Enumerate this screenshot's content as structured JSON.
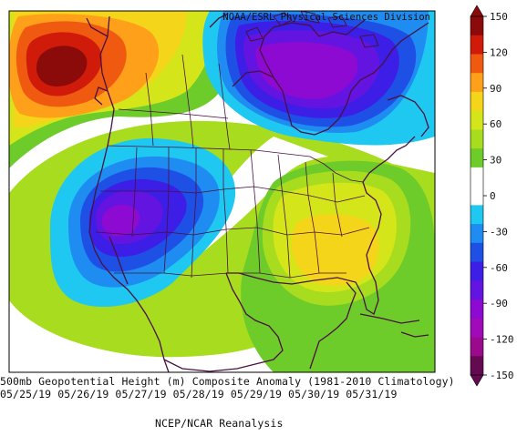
{
  "credit": "NOAA/ESRL Physical Sciences Division",
  "caption": {
    "line1": "500mb Geopotential Height (m) Composite Anomaly (1981-2010 Climatology)",
    "line2": "05/25/19 05/26/19 05/27/19 05/28/19 05/29/19 05/30/19 05/31/19",
    "line3": "NCEP/NCAR Reanalysis"
  },
  "colorbar": {
    "labels": [
      "150",
      "120",
      "90",
      "60",
      "30",
      "0",
      "-30",
      "-60",
      "-90",
      "-120",
      "-150"
    ],
    "colors": [
      "#8b0a0a",
      "#d01a0a",
      "#f05a10",
      "#ffa01a",
      "#f5d51a",
      "#d4e61a",
      "#a8dc1e",
      "#6ecc2a",
      "#ffffff",
      "#ffffff",
      "#1ec8f0",
      "#1e8cf0",
      "#1e50e6",
      "#3c1ee6",
      "#6414e1",
      "#8c0ad2",
      "#a00ab9",
      "#9b0a8c",
      "#640a50"
    ]
  },
  "map": {
    "region": "North America",
    "anomaly_features": [
      {
        "label": "positive anomaly max",
        "value_range": "120 to 150",
        "location": "Gulf of Alaska / Northeast Pacific"
      },
      {
        "label": "negative anomaly min",
        "value_range": "-90 to -120",
        "location": "Hudson Bay / Nunavut"
      },
      {
        "label": "negative anomaly min",
        "value_range": "-90 to -120",
        "location": "Great Basin / Southwestern US"
      },
      {
        "label": "positive anomaly",
        "value_range": "60 to 90",
        "location": "Southeastern US"
      }
    ]
  }
}
